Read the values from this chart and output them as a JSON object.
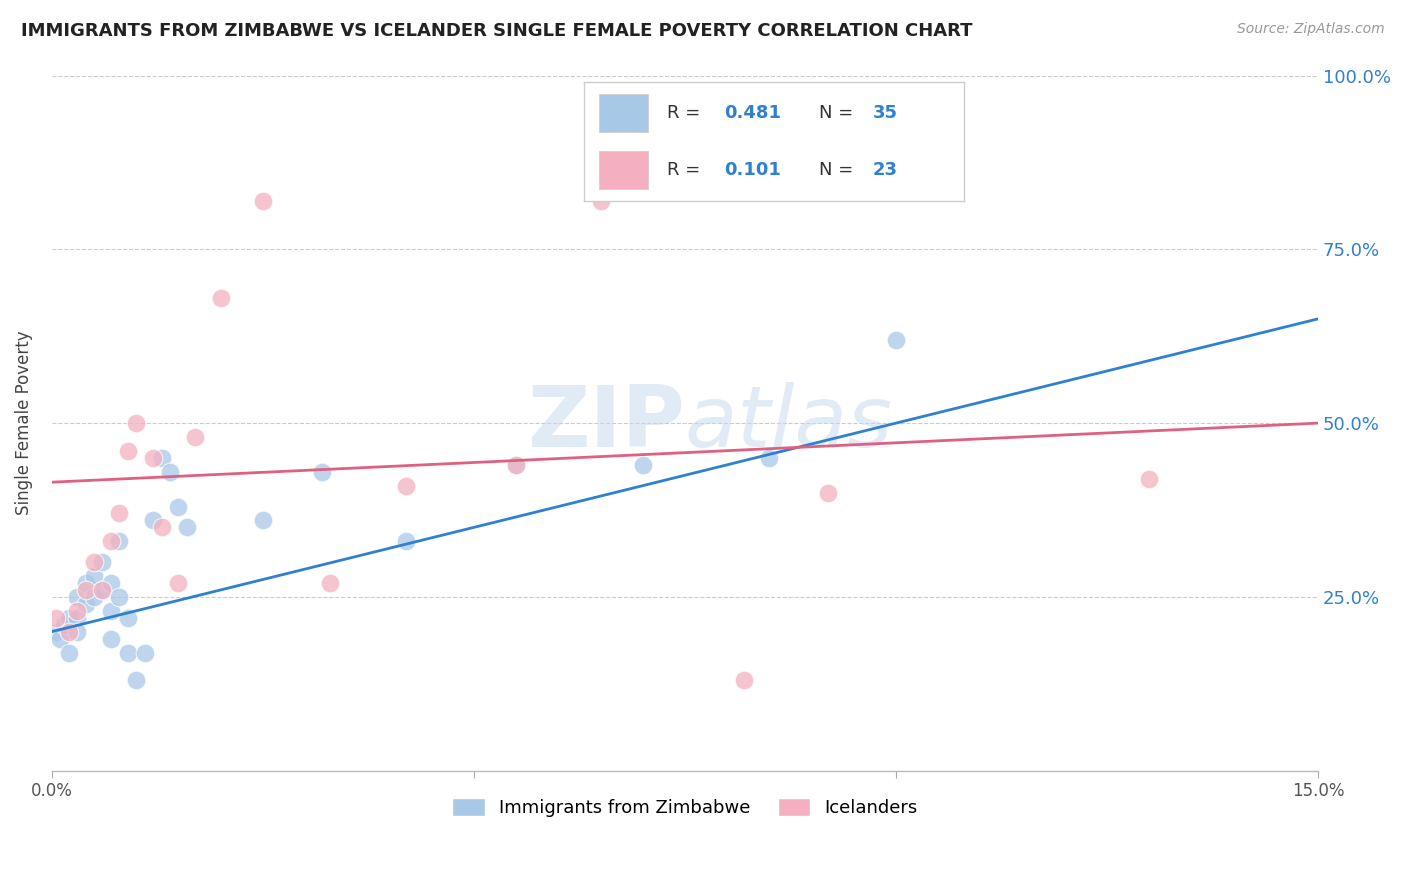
{
  "title": "IMMIGRANTS FROM ZIMBABWE VS ICELANDER SINGLE FEMALE POVERTY CORRELATION CHART",
  "source": "Source: ZipAtlas.com",
  "ylabel": "Single Female Poverty",
  "xlim": [
    0.0,
    0.15
  ],
  "ylim": [
    0.0,
    1.0
  ],
  "yticks": [
    0.0,
    0.25,
    0.5,
    0.75,
    1.0
  ],
  "ytick_labels": [
    "",
    "25.0%",
    "50.0%",
    "75.0%",
    "100.0%"
  ],
  "xticks": [
    0.0,
    0.05,
    0.1,
    0.15
  ],
  "xtick_labels": [
    "0.0%",
    "",
    "",
    "15.0%"
  ],
  "blue_color": "#a8c8e8",
  "pink_color": "#f4b0c0",
  "blue_line_color": "#3080d0",
  "pink_line_color": "#e06080",
  "right_axis_color": "#3080d0",
  "legend_text_color": "#333333",
  "legend_value_color": "#3080d0",
  "blue_scatter_x": [
    0.0005,
    0.001,
    0.0015,
    0.002,
    0.002,
    0.003,
    0.003,
    0.003,
    0.004,
    0.004,
    0.005,
    0.005,
    0.006,
    0.006,
    0.007,
    0.007,
    0.007,
    0.008,
    0.008,
    0.009,
    0.009,
    0.01,
    0.011,
    0.012,
    0.013,
    0.014,
    0.015,
    0.016,
    0.025,
    0.032,
    0.042,
    0.055,
    0.07,
    0.085,
    0.1
  ],
  "blue_scatter_y": [
    0.2,
    0.19,
    0.21,
    0.22,
    0.17,
    0.25,
    0.22,
    0.2,
    0.27,
    0.24,
    0.28,
    0.25,
    0.26,
    0.3,
    0.27,
    0.23,
    0.19,
    0.33,
    0.25,
    0.22,
    0.17,
    0.13,
    0.17,
    0.36,
    0.45,
    0.43,
    0.38,
    0.35,
    0.36,
    0.43,
    0.33,
    0.44,
    0.44,
    0.45,
    0.62
  ],
  "pink_scatter_x": [
    0.0005,
    0.002,
    0.003,
    0.004,
    0.005,
    0.006,
    0.007,
    0.008,
    0.009,
    0.01,
    0.012,
    0.013,
    0.015,
    0.017,
    0.02,
    0.025,
    0.033,
    0.042,
    0.055,
    0.065,
    0.082,
    0.092,
    0.13
  ],
  "pink_scatter_y": [
    0.22,
    0.2,
    0.23,
    0.26,
    0.3,
    0.26,
    0.33,
    0.37,
    0.46,
    0.5,
    0.45,
    0.35,
    0.27,
    0.48,
    0.68,
    0.82,
    0.27,
    0.41,
    0.44,
    0.82,
    0.13,
    0.4,
    0.42
  ],
  "blue_trend_x0": 0.0,
  "blue_trend_y0": 0.2,
  "blue_trend_x1": 0.15,
  "blue_trend_y1": 0.65,
  "pink_trend_x0": 0.0,
  "pink_trend_y0": 0.415,
  "pink_trend_x1": 0.15,
  "pink_trend_y1": 0.5,
  "watermark_zip": "ZIP",
  "watermark_atlas": "atlas",
  "background_color": "#ffffff",
  "grid_color": "#cccccc",
  "title_fontsize": 13,
  "scatter_size": 180,
  "scatter_alpha": 0.75
}
